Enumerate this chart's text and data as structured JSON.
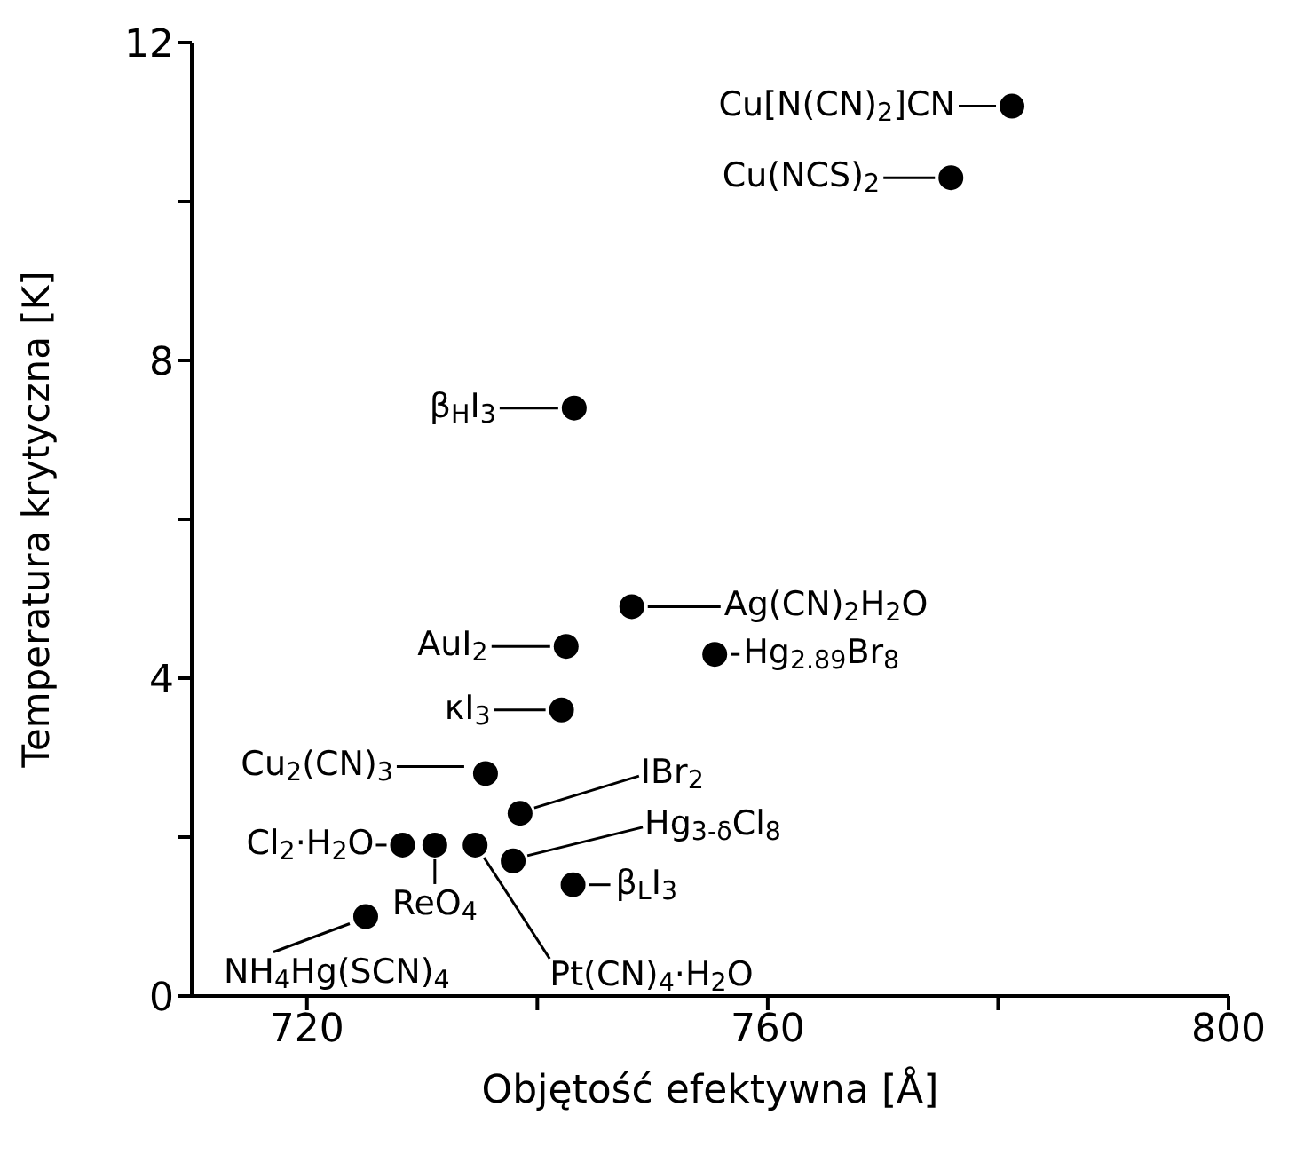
{
  "chart_data": {
    "type": "scatter",
    "xlabel": "Objętość efektywna [Å]",
    "ylabel": "Temperatura krytyczna [K]",
    "xlim": [
      710,
      800
    ],
    "xticks": [
      720,
      {
        "value": 740,
        "label": null
      },
      760,
      {
        "value": 780,
        "label": null
      },
      800
    ],
    "ylim": [
      0,
      12
    ],
    "yticks": [
      0,
      {
        "value": 2,
        "label": null
      },
      4,
      {
        "value": 6,
        "label": null
      },
      8,
      {
        "value": 10,
        "label": null
      },
      12
    ],
    "grid": false,
    "marker": "circle",
    "series": [
      {
        "color": "#000000",
        "x": [
          781.2,
          775.9,
          743.2,
          748.2,
          742.5,
          755.4,
          742.1,
          735.5,
          738.5,
          728.3,
          731.1,
          734.6,
          737.9,
          743.1,
          725.1
        ],
        "values": [
          11.2,
          10.3,
          7.4,
          4.9,
          4.4,
          4.3,
          3.6,
          2.8,
          2.3,
          1.9,
          1.9,
          1.9,
          1.7,
          1.4,
          1.0
        ]
      }
    ],
    "annotations": [
      {
        "text": "Cu[N(CN)$_{2}$]CN",
        "x": 781.2,
        "y": 11.2
      },
      {
        "text": "Cu(NCS)$_{2}$",
        "x": 775.9,
        "y": 10.3
      },
      {
        "text": "β$_{H}$I$_{3}$",
        "x": 743.2,
        "y": 7.4
      },
      {
        "text": "Ag(CN)$_{2}$H$_{2}$O",
        "x": 748.2,
        "y": 4.9
      },
      {
        "text": "AuI$_{2}$",
        "x": 742.5,
        "y": 4.4
      },
      {
        "text": "Hg$_{2.89}$Br$_{8}$",
        "x": 755.4,
        "y": 4.3
      },
      {
        "text": "κI$_{3}$",
        "x": 742.1,
        "y": 3.6
      },
      {
        "text": "Cu$_{2}$(CN)$_{3}$",
        "x": 735.5,
        "y": 2.8
      },
      {
        "text": "IBr$_{2}$",
        "x": 738.5,
        "y": 2.3
      },
      {
        "text": "Cl$_{2}$·H$_{2}$O",
        "x": 728.3,
        "y": 1.9
      },
      {
        "text": "ReO$_{4}$",
        "x": 731.1,
        "y": 1.9
      },
      {
        "text": "Pt(CN)$_{4}$·H$_{2}$O",
        "x": 734.6,
        "y": 1.9
      },
      {
        "text": "Hg$_{3-δ}$Cl$_{8}$",
        "x": 737.9,
        "y": 1.7
      },
      {
        "text": "β$_{L}$I$_{3}$",
        "x": 743.1,
        "y": 1.4
      },
      {
        "text": "NH$_{4}$Hg(SCN)$_{4}$",
        "x": 725.1,
        "y": 1.0
      }
    ]
  }
}
